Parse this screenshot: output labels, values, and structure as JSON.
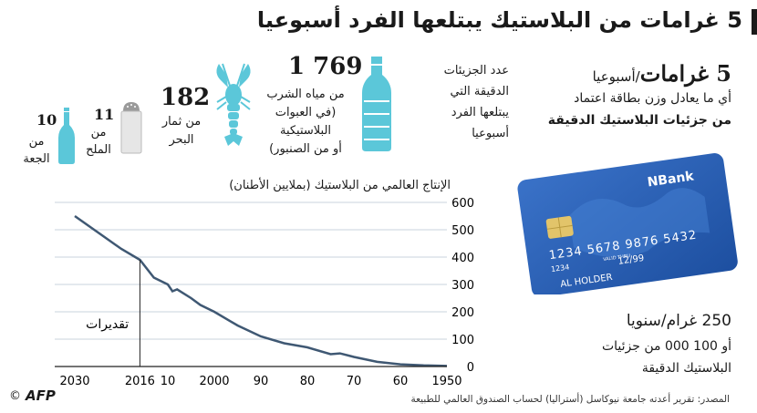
{
  "title": "5 غرامات من البلاستيك يبتلعها الفرد أسبوعيا",
  "right_panel": {
    "headline_big": "5 غرامات",
    "headline_small": "/أسبوعيا",
    "line1": "أي ما يعادل وزن بطاقة اعتماد",
    "line2": "من جزئيات البلاستيك الدقيقة",
    "card": {
      "brand": "NBank",
      "number": "1234 5678 9876 5432",
      "valid_short": "1234",
      "valid_label": "VALID THRU",
      "expiry": "12/99",
      "holder": "AL HOLDER"
    },
    "yearly_big": "250 غرام/سنويا",
    "yearly_line2": "أو 100 000 من جزئيات",
    "yearly_line3": "البلاستيك الدقيقة"
  },
  "sources": {
    "water": {
      "value": "1 769",
      "lines": [
        "من مياه الشرب",
        "(في العبوات",
        "البلاستيكية",
        "أو من الصنبور)"
      ]
    },
    "particles_label": [
      "عدد الجزيئات",
      "الدقيقة التي",
      "يبتلعها الفرد",
      "أسبوعيا"
    ],
    "seafood": {
      "value": "182",
      "lines": [
        "من ثمار",
        "البحر"
      ]
    },
    "salt": {
      "value": "11",
      "lines": [
        "من",
        "الملح"
      ]
    },
    "beer": {
      "value": "10",
      "lines": [
        "من",
        "الجعة"
      ]
    }
  },
  "footer": {
    "source_line1": "المصدر: تقرير أعدته جامعة نيوكاسل (أستراليا) لحساب الصندوق العالمي للطبيعة",
    "logo": "AFP",
    "copyright": "©"
  },
  "chart_data": {
    "type": "line",
    "title": "الإنتاج العالمي من البلاستيك (بملايين الأطنان)",
    "x_tick_labels": [
      "2030",
      "2016",
      "10",
      "2000",
      "90",
      "80",
      "70",
      "60",
      "1950"
    ],
    "y_ticks": [
      0,
      100,
      200,
      300,
      400,
      500,
      600
    ],
    "ylim": [
      0,
      600
    ],
    "xlim": [
      1950,
      2030
    ],
    "x_reversed": true,
    "annotation": "تقديرات",
    "annotation_year": 2016,
    "colors": {
      "line": "#3f5873",
      "grid": "#c9d3dc",
      "axis": "#222222"
    },
    "series": [
      {
        "x": [
          1950,
          1955,
          1960,
          1965,
          1970,
          1973,
          1975,
          1980,
          1985,
          1990,
          1995,
          2000,
          2003,
          2005,
          2008,
          2009,
          2010,
          2013,
          2016,
          2020,
          2025,
          2030
        ],
        "y": [
          2,
          4,
          8,
          17,
          35,
          48,
          45,
          70,
          85,
          110,
          150,
          200,
          225,
          250,
          282,
          275,
          300,
          325,
          390,
          430,
          490,
          550
        ]
      }
    ]
  }
}
